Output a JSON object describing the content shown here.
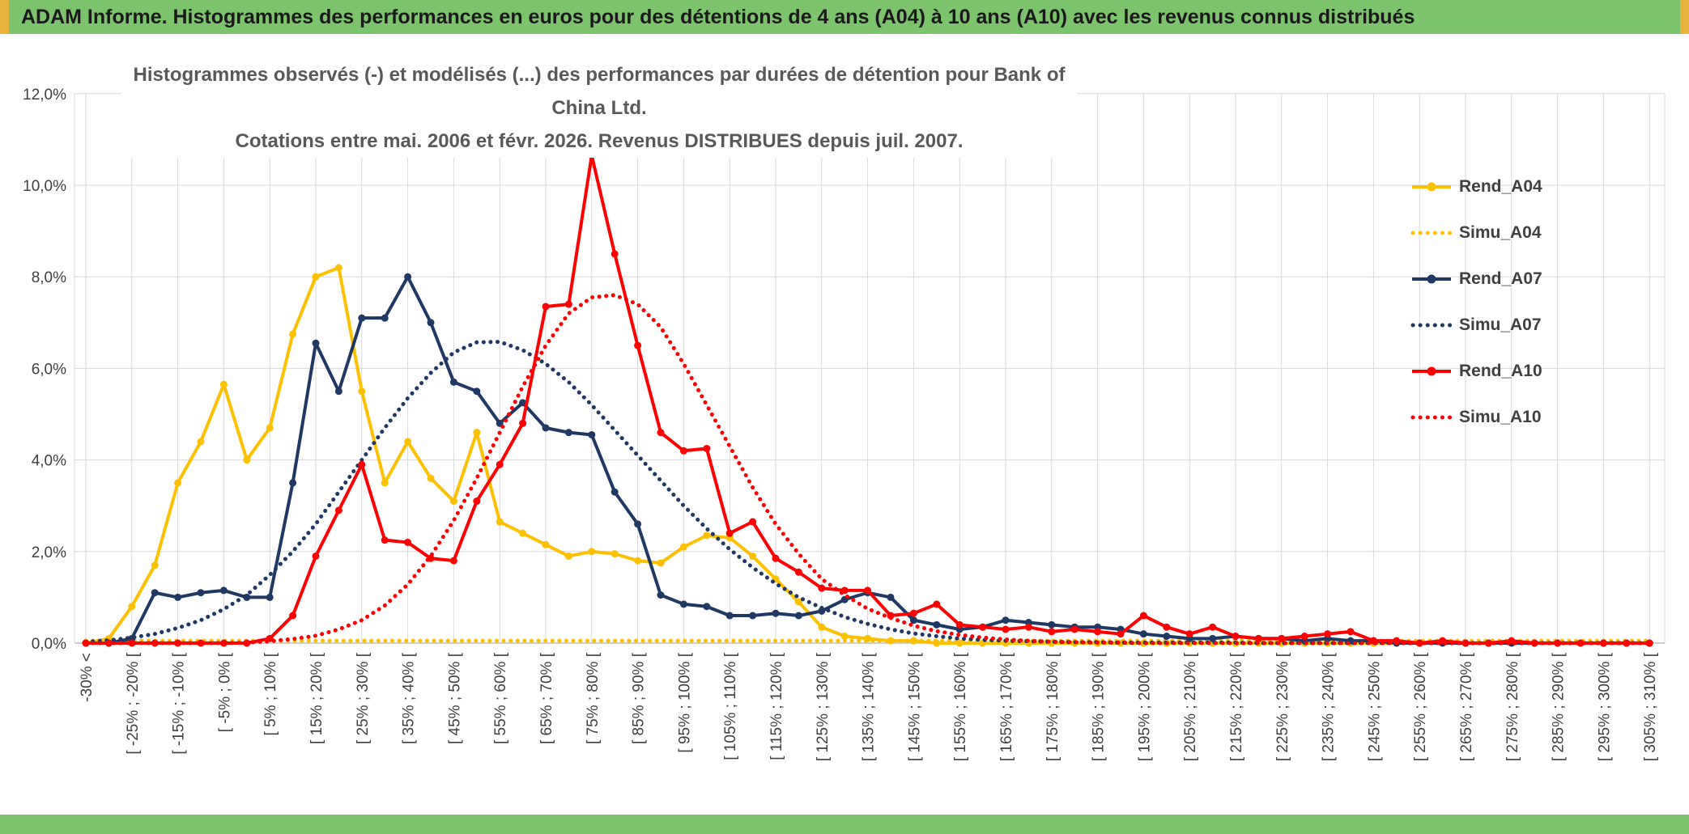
{
  "window": {
    "header_title": "ADAM Informe. Histogrammes des performances en euros pour des détentions de 4 ans (A04) à 10 ans (A10) avec les revenus connus distribués",
    "header_bg": "#7DC36E",
    "footer_bg": "#7DC36E",
    "edge_accent": "#E8B33C"
  },
  "chart_data": {
    "type": "line",
    "title_line1": "Histogrammes observés (-) et modélisés (...) des performances par durées de détention pour Bank of China Ltd.",
    "title_line2": "Cotations entre mai. 2006 et févr. 2026. Revenus DISTRIBUES depuis juil. 2007.",
    "xlabel": "",
    "ylabel": "",
    "ylim": [
      0,
      12
    ],
    "ytick_step": 2,
    "ytick_labels": [
      "0,0%",
      "2,0%",
      "4,0%",
      "6,0%",
      "8,0%",
      "10,0%",
      "12,0%"
    ],
    "grid": true,
    "legend_position": "right-inside",
    "grid_color": "#D9D9D9",
    "axis_color": "#BFBFBF",
    "tick_label_color": "#404040",
    "categories": [
      "-30% <",
      "",
      "[ -25% ; -20% [",
      "",
      "[ -15% ; -10% [",
      "",
      "[ -5% ; 0% [",
      "",
      "[ 5% ; 10% [",
      "",
      "[ 15% ; 20% [",
      "",
      "[ 25% ; 30% [",
      "",
      "[ 35% ; 40% [",
      "",
      "[ 45% ; 50% [",
      "",
      "[ 55% ; 60% [",
      "",
      "[ 65% ; 70% [",
      "",
      "[ 75% ; 80% [",
      "",
      "[ 85% ; 90% [",
      "",
      "[ 95% ; 100% [",
      "",
      "[ 105% ; 110% [",
      "",
      "[ 115% ; 120% [",
      "",
      "[ 125% ; 130% [",
      "",
      "[ 135% ; 140% [",
      "",
      "[ 145% ; 150% [",
      "",
      "[ 155% ; 160% [",
      "",
      "[ 165% ; 170% [",
      "",
      "[ 175% ; 180% [",
      "",
      "[ 185% ; 190% [",
      "",
      "[ 195% ; 200% [",
      "",
      "[ 205% ; 210% [",
      "",
      "[ 215% ; 220% [",
      "",
      "[ 225% ; 230% [",
      "",
      "[ 235% ; 240% [",
      "",
      "[ 245% ; 250% [",
      "",
      "[ 255% ; 260% [",
      "",
      "[ 265% ; 270% [",
      "",
      "[ 275% ; 280% [",
      "",
      "[ 285% ; 290% [",
      "",
      "[ 295% ; 300% [",
      "",
      "[ 305% ; 310% ["
    ],
    "series": [
      {
        "name": "Rend_A04",
        "color": "#FFC000",
        "style": "solid",
        "values": [
          0,
          0.1,
          0.8,
          1.7,
          3.5,
          4.4,
          5.65,
          4.0,
          4.7,
          6.75,
          8.0,
          8.2,
          5.5,
          3.5,
          4.4,
          3.6,
          3.1,
          4.6,
          2.65,
          2.4,
          2.15,
          1.9,
          2.0,
          1.95,
          1.8,
          1.75,
          2.1,
          2.35,
          2.3,
          1.9,
          1.4,
          0.9,
          0.35,
          0.15,
          0.1,
          0.05,
          0.05,
          0,
          0,
          0,
          0,
          0,
          0,
          0,
          0,
          0,
          0,
          0,
          0,
          0,
          0,
          0,
          0,
          0,
          0,
          0,
          0,
          0,
          0,
          0,
          0,
          0,
          0,
          0,
          0,
          0,
          0,
          0,
          0
        ]
      },
      {
        "name": "Simu_A04",
        "color": "#FFC000",
        "style": "dotted",
        "values": [
          0.05,
          0.05,
          0.05,
          0.05,
          0.05,
          0.05,
          0.05,
          0.05,
          0.05,
          0.05,
          0.05,
          0.05,
          0.05,
          0.05,
          0.05,
          0.05,
          0.05,
          0.05,
          0.05,
          0.05,
          0.05,
          0.05,
          0.05,
          0.05,
          0.05,
          0.05,
          0.05,
          0.05,
          0.05,
          0.05,
          0.05,
          0.05,
          0.05,
          0.05,
          0.05,
          0.05,
          0.05,
          0.05,
          0.05,
          0.05,
          0.05,
          0.05,
          0.05,
          0.05,
          0.05,
          0.05,
          0.05,
          0.05,
          0.05,
          0.05,
          0.05,
          0.05,
          0.05,
          0.05,
          0.05,
          0.05,
          0.05,
          0.05,
          0.05,
          0.05,
          0.05,
          0.05,
          0.05,
          0.05,
          0.05,
          0.05,
          0.05,
          0.05,
          0.05
        ]
      },
      {
        "name": "Rend_A07",
        "color": "#1F3864",
        "style": "solid",
        "values": [
          0,
          0,
          0.1,
          1.1,
          1.0,
          1.1,
          1.15,
          1.0,
          1.0,
          3.5,
          6.55,
          5.5,
          7.1,
          7.1,
          8.0,
          7.0,
          5.7,
          5.5,
          4.8,
          5.25,
          4.7,
          4.6,
          4.55,
          3.3,
          2.6,
          1.05,
          0.85,
          0.8,
          0.6,
          0.6,
          0.65,
          0.6,
          0.7,
          0.95,
          1.1,
          1.0,
          0.5,
          0.4,
          0.3,
          0.35,
          0.5,
          0.45,
          0.4,
          0.35,
          0.35,
          0.3,
          0.2,
          0.15,
          0.1,
          0.1,
          0.15,
          0.1,
          0.1,
          0.05,
          0.1,
          0.05,
          0.05,
          0,
          0,
          0,
          0,
          0,
          0,
          0,
          0,
          0,
          0,
          0,
          0
        ]
      },
      {
        "name": "Simu_A07",
        "color": "#1F3864",
        "style": "dotted",
        "values": [
          0.03,
          0.06,
          0.12,
          0.2,
          0.33,
          0.5,
          0.74,
          1.05,
          1.49,
          2.0,
          2.6,
          3.3,
          4.0,
          4.7,
          5.35,
          5.9,
          6.35,
          6.57,
          6.58,
          6.4,
          6.1,
          5.7,
          5.2,
          4.65,
          4.1,
          3.55,
          3.0,
          2.5,
          2.05,
          1.65,
          1.3,
          1.0,
          0.77,
          0.57,
          0.42,
          0.3,
          0.21,
          0.15,
          0.1,
          0.07,
          0.05,
          0.04,
          0.03,
          0.02,
          0.02,
          0.01,
          0.01,
          0.01,
          0.01,
          0.01,
          0.01,
          0,
          0,
          0,
          0,
          0,
          0,
          0,
          0,
          0,
          0,
          0,
          0,
          0,
          0,
          0,
          0,
          0,
          0
        ]
      },
      {
        "name": "Rend_A10",
        "color": "#FF0000",
        "style": "solid",
        "values": [
          0,
          0,
          0,
          0,
          0,
          0,
          0,
          0,
          0.1,
          0.6,
          1.9,
          2.9,
          3.9,
          2.25,
          2.2,
          1.85,
          1.8,
          3.1,
          3.9,
          4.8,
          7.35,
          7.4,
          10.65,
          8.5,
          6.5,
          4.6,
          4.2,
          4.25,
          2.4,
          2.65,
          1.85,
          1.55,
          1.2,
          1.15,
          1.15,
          0.6,
          0.65,
          0.85,
          0.4,
          0.35,
          0.3,
          0.35,
          0.25,
          0.3,
          0.25,
          0.2,
          0.6,
          0.35,
          0.2,
          0.35,
          0.15,
          0.1,
          0.1,
          0.15,
          0.2,
          0.25,
          0.05,
          0.05,
          0,
          0.05,
          0,
          0,
          0.05,
          0,
          0,
          0,
          0,
          0,
          0
        ]
      },
      {
        "name": "Simu_A10",
        "color": "#FF0000",
        "style": "dotted",
        "values": [
          0,
          0,
          0,
          0,
          0,
          0,
          0,
          0.01,
          0.04,
          0.09,
          0.16,
          0.3,
          0.5,
          0.82,
          1.28,
          1.9,
          2.68,
          3.6,
          4.6,
          5.6,
          6.5,
          7.2,
          7.55,
          7.6,
          7.4,
          6.9,
          6.1,
          5.2,
          4.3,
          3.4,
          2.6,
          1.95,
          1.4,
          1.05,
          0.75,
          0.55,
          0.38,
          0.26,
          0.18,
          0.12,
          0.08,
          0.05,
          0.03,
          0.02,
          0.01,
          0.01,
          0,
          0,
          0,
          0,
          0,
          0,
          0,
          0,
          0,
          0,
          0,
          0,
          0,
          0,
          0,
          0,
          0,
          0,
          0,
          0,
          0,
          0,
          0
        ]
      }
    ]
  }
}
